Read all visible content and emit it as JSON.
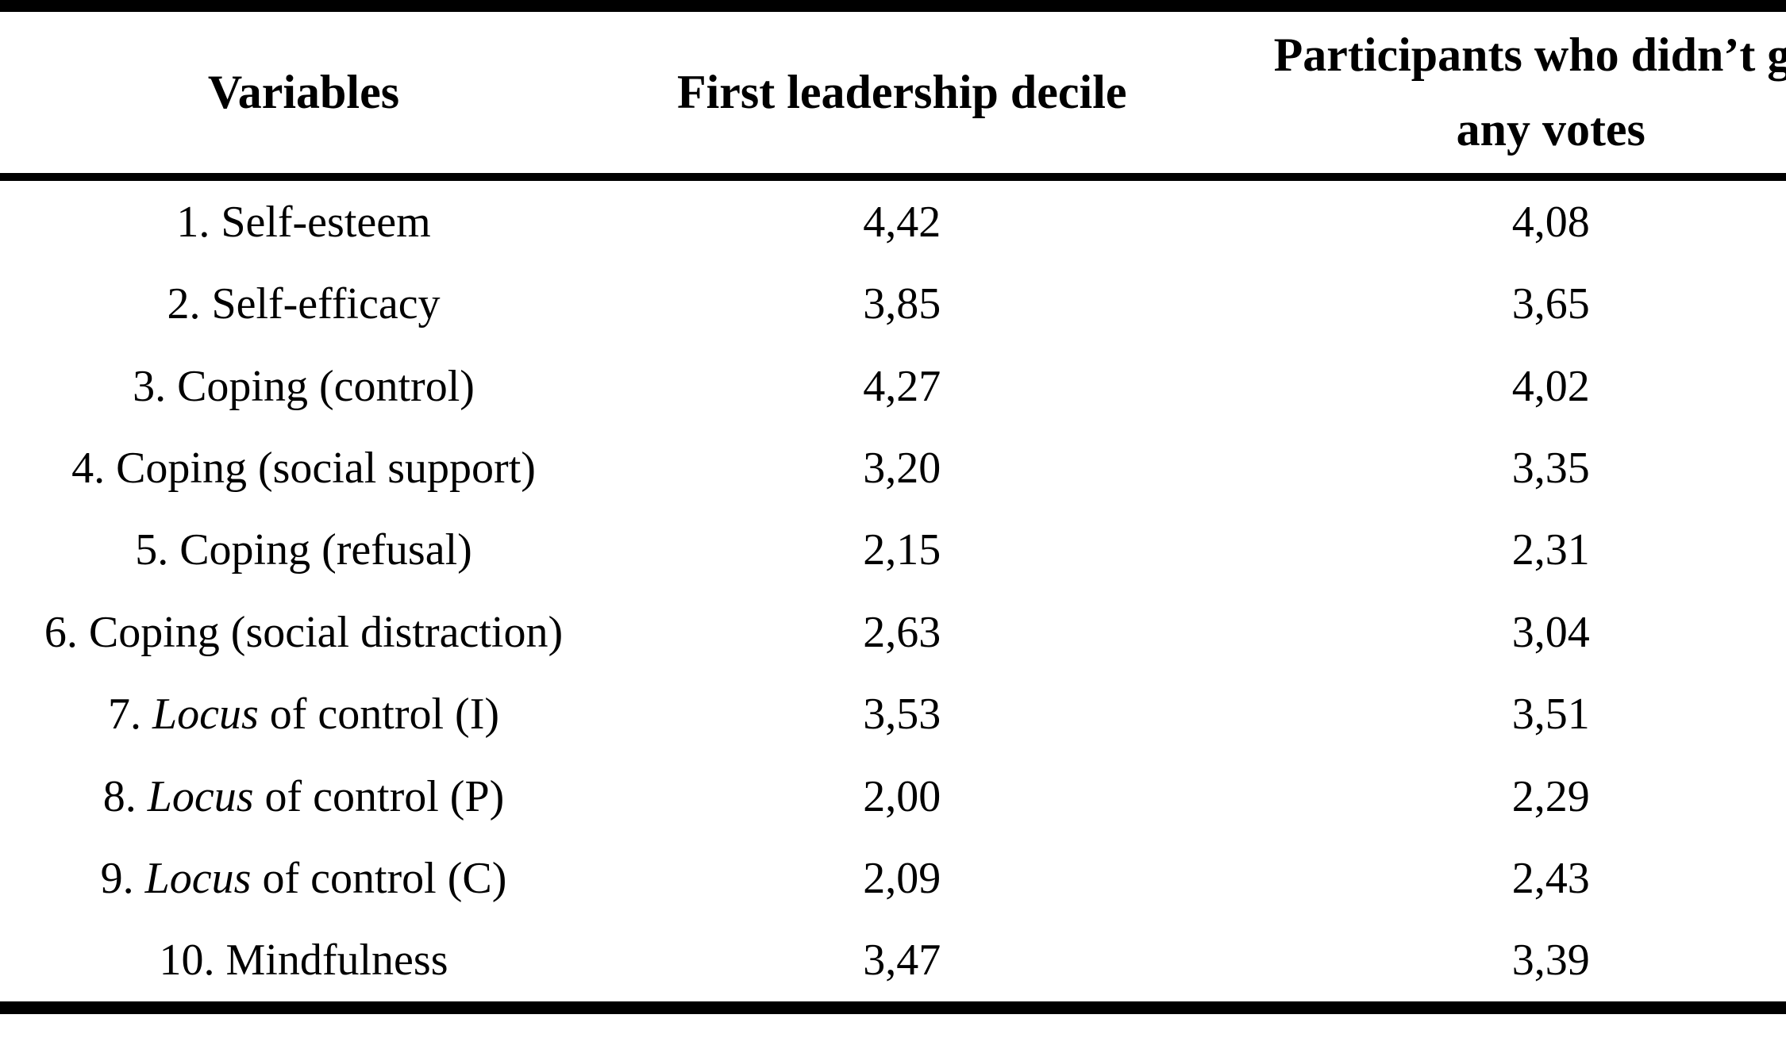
{
  "page": {
    "background_color": "#ffffff",
    "text_color": "#000000",
    "rule_color": "#000000"
  },
  "table": {
    "header": {
      "variables": "Variables",
      "first_leadership_decile": "First leadership decile",
      "no_votes_line1": "Participants who didn’t get",
      "no_votes_line2": "any votes"
    },
    "rows": [
      {
        "pre": "1. Self-esteem",
        "it": "",
        "post": "",
        "decile": "4,42",
        "no_votes": "4,08"
      },
      {
        "pre": "2. Self-efficacy",
        "it": "",
        "post": "",
        "decile": "3,85",
        "no_votes": "3,65"
      },
      {
        "pre": "3. Coping (control)",
        "it": "",
        "post": "",
        "decile": "4,27",
        "no_votes": "4,02"
      },
      {
        "pre": "4. Coping (social support)",
        "it": "",
        "post": "",
        "decile": "3,20",
        "no_votes": "3,35"
      },
      {
        "pre": "5. Coping (refusal)",
        "it": "",
        "post": "",
        "decile": "2,15",
        "no_votes": "2,31"
      },
      {
        "pre": "6. Coping (social distraction)",
        "it": "",
        "post": "",
        "decile": "2,63",
        "no_votes": "3,04"
      },
      {
        "pre": "7. ",
        "it": "Locus",
        "post": " of control (I)",
        "decile": "3,53",
        "no_votes": "3,51"
      },
      {
        "pre": "8. ",
        "it": "Locus",
        "post": " of control (P)",
        "decile": "2,00",
        "no_votes": "2,29"
      },
      {
        "pre": "9. ",
        "it": "Locus",
        "post": " of control (C)",
        "decile": "2,09",
        "no_votes": "2,43"
      },
      {
        "pre": "10. Mindfulness",
        "it": "",
        "post": "",
        "decile": "3,47",
        "no_votes": "3,39"
      }
    ]
  }
}
